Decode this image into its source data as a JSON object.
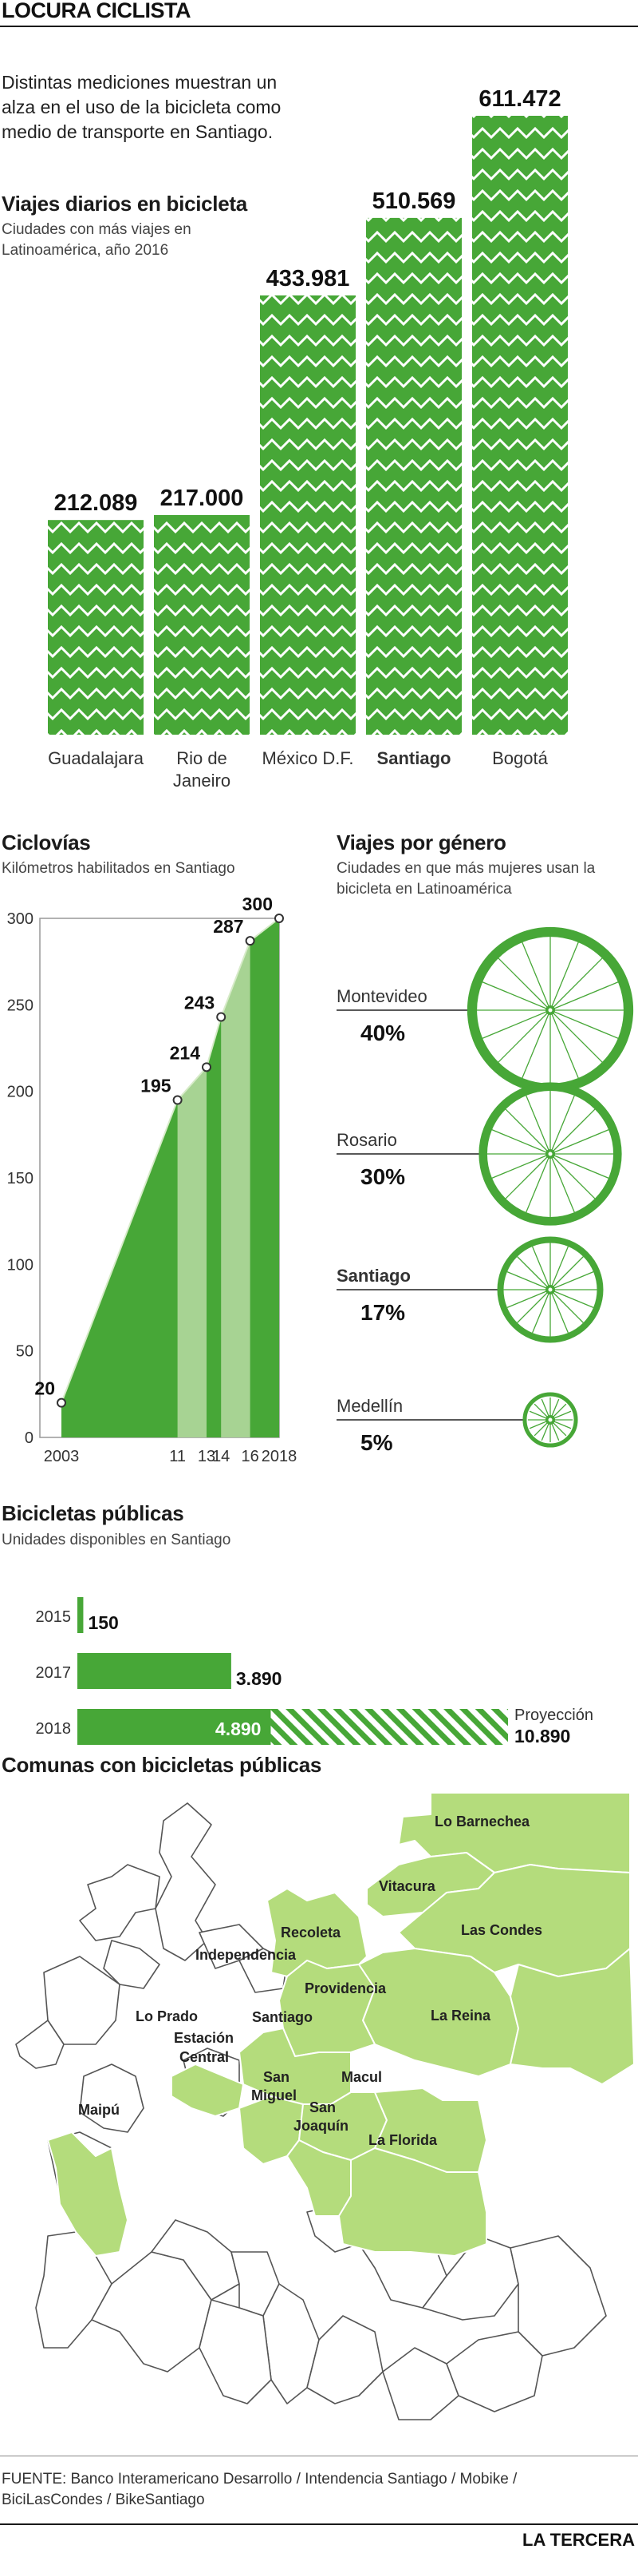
{
  "header": {
    "title": "LOCURA CICLISTA",
    "intro": [
      "Distintas mediciones muestran un",
      "alza en el uso de la bicicleta como",
      "medio de transporte en Santiago."
    ]
  },
  "colors": {
    "green": "#47a737",
    "light_green": "#b4dc7c",
    "pale_green": "#a7d393",
    "dark_text": "#1a1a1a"
  },
  "chart_data": [
    {
      "id": "viajes_diarios",
      "type": "bar",
      "title": "Viajes diarios en bicicleta",
      "subtitle": [
        "Ciudades con más viajes en",
        "Latinoamérica, año 2016"
      ],
      "categories": [
        "Guadalajara",
        "Rio de Janeiro",
        "México D.F.",
        "Santiago",
        "Bogotá"
      ],
      "category_lines": [
        [
          "Guadalajara"
        ],
        [
          "Rio de",
          "Janeiro"
        ],
        [
          "México D.F."
        ],
        [
          "Santiago"
        ],
        [
          "Bogotá"
        ]
      ],
      "highlight": "Santiago",
      "values": [
        212089,
        217000,
        433981,
        510569,
        611472
      ],
      "value_labels": [
        "212.089",
        "217.000",
        "433.981",
        "510.569",
        "611.472"
      ]
    },
    {
      "id": "ciclovias",
      "type": "area",
      "title": "Ciclovías",
      "subtitle": "Kilómetros habilitados en Santiago",
      "x": [
        2003,
        2011,
        2013,
        2014,
        2016,
        2018
      ],
      "x_labels": [
        "2003",
        "11",
        "13",
        "14",
        "16",
        "2018"
      ],
      "values": [
        20,
        195,
        214,
        243,
        287,
        300
      ],
      "ylim": [
        0,
        300
      ],
      "yticks": [
        "0",
        "50",
        "100",
        "150",
        "200",
        "250",
        "300"
      ],
      "grid": false
    },
    {
      "id": "viajes_genero",
      "type": "bar",
      "title": "Viajes por género",
      "subtitle": [
        "Ciudades en que más mujeres usan la",
        "bicicleta en Latinoamérica"
      ],
      "categories": [
        "Montevideo",
        "Rosario",
        "Santiago",
        "Medellín"
      ],
      "highlight": "Santiago",
      "values": [
        40,
        30,
        17,
        5
      ],
      "value_labels": [
        "40%",
        "30%",
        "17%",
        "5%"
      ]
    },
    {
      "id": "bicicletas_publicas",
      "type": "bar",
      "title": "Bicicletas públicas",
      "subtitle": "Unidades disponibles en Santiago",
      "categories": [
        "2015",
        "2017",
        "2018"
      ],
      "values": [
        150,
        3890,
        4890
      ],
      "value_labels": [
        "150",
        "3.890",
        "4.890"
      ],
      "projection": {
        "label": "Proyección",
        "value": 10890,
        "value_label": "10.890"
      }
    }
  ],
  "map": {
    "title": "Comunas con bicicletas públicas",
    "comunas": [
      "Lo Barnechea",
      "Vitacura",
      "Las Condes",
      "Recoleta",
      "Independencia",
      "Providencia",
      "Lo Prado",
      "Santiago",
      "La Reina",
      "Estación",
      "Central",
      "San",
      "Miguel",
      "Macul",
      "San",
      "Joaquín",
      "Maipú",
      "La Florida"
    ]
  },
  "footer": {
    "source": [
      "FUENTE: Banco Interamericano Desarrollo / Intendencia Santiago / Mobike /",
      "BiciLasCondes / BikeSantiago"
    ],
    "brand": "LA TERCERA"
  }
}
